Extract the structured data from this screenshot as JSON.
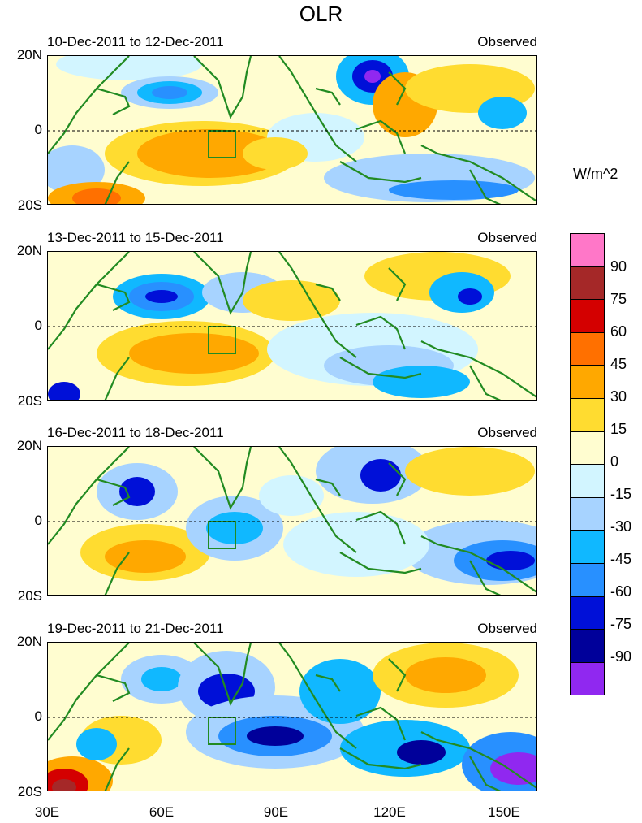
{
  "title": "OLR",
  "units": "W/m^2",
  "lat_labels": [
    "20N",
    "0",
    "20S"
  ],
  "lon_labels": [
    "30E",
    "60E",
    "90E",
    "120E",
    "150E"
  ],
  "panels": [
    {
      "period": "10-Dec-2011 to 12-Dec-2011",
      "label": "Observed"
    },
    {
      "period": "13-Dec-2011 to 15-Dec-2011",
      "label": "Observed"
    },
    {
      "period": "16-Dec-2011 to 18-Dec-2011",
      "label": "Observed"
    },
    {
      "period": "19-Dec-2011 to 21-Dec-2011",
      "label": "Observed"
    }
  ],
  "colorbar": {
    "labels": [
      "90",
      "75",
      "60",
      "45",
      "30",
      "15",
      "0",
      "-15",
      "-30",
      "-45",
      "-60",
      "-75",
      "-90"
    ],
    "colors": [
      "#ff77c8",
      "#a52828",
      "#d40000",
      "#ff7000",
      "#ffa800",
      "#ffdc30",
      "#fffdd0",
      "#d2f5ff",
      "#a7d3ff",
      "#10b8ff",
      "#2890ff",
      "#0010d8",
      "#00009a",
      "#9028f0"
    ]
  },
  "map_colors": {
    "neutral": "#fffdd0",
    "pos15": "#ffdc30",
    "pos30": "#ffa800",
    "pos45": "#ff7000",
    "pos60": "#d40000",
    "pos75": "#a52828",
    "neg15": "#d2f5ff",
    "neg30": "#a7d3ff",
    "neg45": "#10b8ff",
    "neg60": "#2890ff",
    "neg75": "#0010d8",
    "neg90": "#00009a",
    "neg99": "#9028f0",
    "coast": "#228b22"
  }
}
